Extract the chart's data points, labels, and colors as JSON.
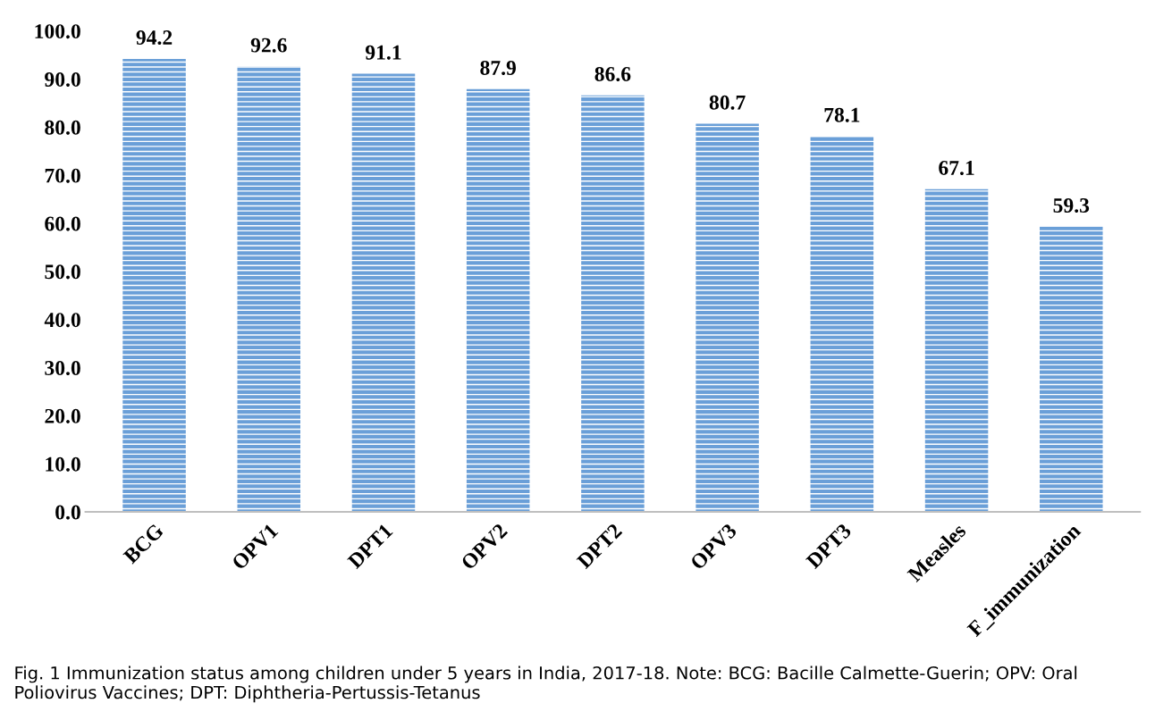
{
  "chart_data": {
    "type": "bar",
    "categories": [
      "BCG",
      "OPV1",
      "DPT1",
      "OPV2",
      "DPT2",
      "OPV3",
      "DPT3",
      "Measles",
      "F_immunization"
    ],
    "values": [
      94.2,
      92.6,
      91.1,
      87.9,
      86.6,
      80.7,
      78.1,
      67.1,
      59.3
    ],
    "color": "#6a9fd8",
    "ylim": [
      0,
      100
    ],
    "yticks": [
      {
        "value": 0,
        "label": "0.0"
      },
      {
        "value": 10,
        "label": "10.0"
      },
      {
        "value": 20,
        "label": "20.0"
      },
      {
        "value": 30,
        "label": "30.0"
      },
      {
        "value": 40,
        "label": "40.0"
      },
      {
        "value": 50,
        "label": "50.0"
      },
      {
        "value": 60,
        "label": "60.0"
      },
      {
        "value": 70,
        "label": "70.0"
      },
      {
        "value": 80,
        "label": "80.0"
      },
      {
        "value": 90,
        "label": "90.0"
      },
      {
        "value": 100,
        "label": "100.0"
      }
    ],
    "data_labels": true,
    "annotations": [
      "Fig. 1 Immunization status among children under 5 years in India, 2017-18. Note: BCG: Bacille Calmette-Guerin; OPV: Oral Poliovirus Vaccines; DPT: Diphtheria-Pertussis-Tetanus"
    ]
  }
}
